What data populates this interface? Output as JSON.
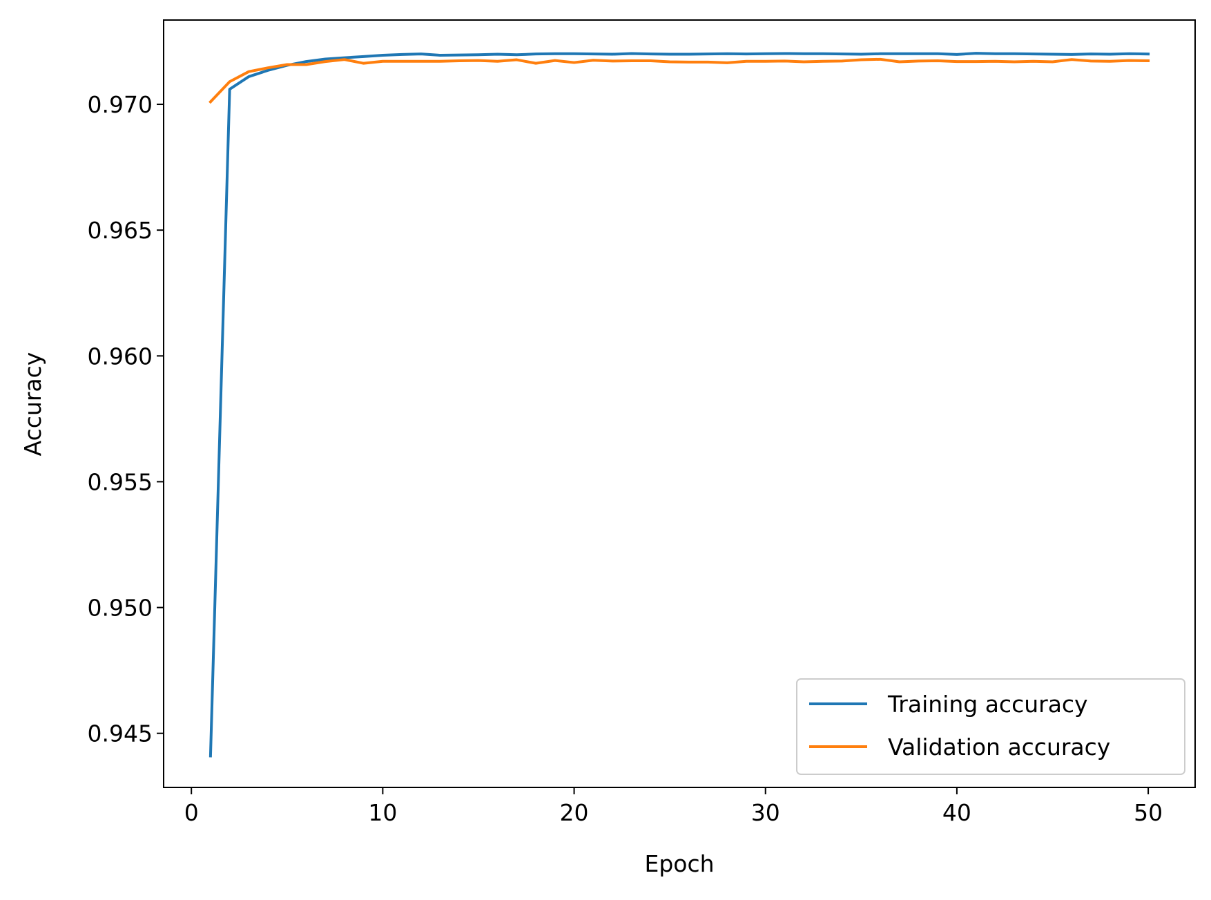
{
  "chart_data": {
    "type": "line",
    "xlabel": "Epoch",
    "ylabel": "Accuracy",
    "xlim": [
      -1.45,
      52.45
    ],
    "ylim": [
      0.94285,
      0.97335
    ],
    "xticks": [
      0,
      10,
      20,
      30,
      40,
      50
    ],
    "xtick_labels": [
      "0",
      "10",
      "20",
      "30",
      "40",
      "50"
    ],
    "yticks": [
      0.945,
      0.95,
      0.955,
      0.96,
      0.965,
      0.97
    ],
    "ytick_labels": [
      "0.945",
      "0.950",
      "0.955",
      "0.960",
      "0.965",
      "0.970"
    ],
    "grid": false,
    "legend_position": "lower-right",
    "x": [
      1,
      2,
      3,
      4,
      5,
      6,
      7,
      8,
      9,
      10,
      11,
      12,
      13,
      14,
      15,
      16,
      17,
      18,
      19,
      20,
      21,
      22,
      23,
      24,
      25,
      26,
      27,
      28,
      29,
      30,
      31,
      32,
      33,
      34,
      35,
      36,
      37,
      38,
      39,
      40,
      41,
      42,
      43,
      44,
      45,
      46,
      47,
      48,
      49,
      50
    ],
    "series": [
      {
        "name": "Training accuracy",
        "color": "#1f77b4",
        "values": [
          0.9441,
          0.9706,
          0.9711,
          0.97135,
          0.97155,
          0.9717,
          0.9718,
          0.97185,
          0.9719,
          0.97195,
          0.97198,
          0.972,
          0.97195,
          0.97196,
          0.97197,
          0.97199,
          0.97197,
          0.972,
          0.97201,
          0.97201,
          0.972,
          0.97199,
          0.97202,
          0.972,
          0.97199,
          0.97199,
          0.972,
          0.97201,
          0.972,
          0.97201,
          0.97202,
          0.97201,
          0.97201,
          0.972,
          0.97199,
          0.97201,
          0.97201,
          0.97201,
          0.97201,
          0.97198,
          0.97203,
          0.97201,
          0.97201,
          0.972,
          0.97199,
          0.97198,
          0.972,
          0.97199,
          0.97201,
          0.972
        ]
      },
      {
        "name": "Validation accuracy",
        "color": "#ff7f0e",
        "values": [
          0.9701,
          0.9709,
          0.9713,
          0.97145,
          0.97158,
          0.97158,
          0.9717,
          0.97178,
          0.97163,
          0.97171,
          0.97171,
          0.97171,
          0.97171,
          0.97173,
          0.97174,
          0.97171,
          0.97177,
          0.97163,
          0.97174,
          0.97166,
          0.97175,
          0.97172,
          0.97173,
          0.97173,
          0.97169,
          0.97168,
          0.97168,
          0.97165,
          0.97171,
          0.97171,
          0.97172,
          0.97169,
          0.97171,
          0.97172,
          0.97177,
          0.97179,
          0.97169,
          0.97172,
          0.97173,
          0.9717,
          0.9717,
          0.97171,
          0.97169,
          0.97171,
          0.97169,
          0.97178,
          0.97172,
          0.97171,
          0.97174,
          0.97173
        ]
      }
    ]
  }
}
